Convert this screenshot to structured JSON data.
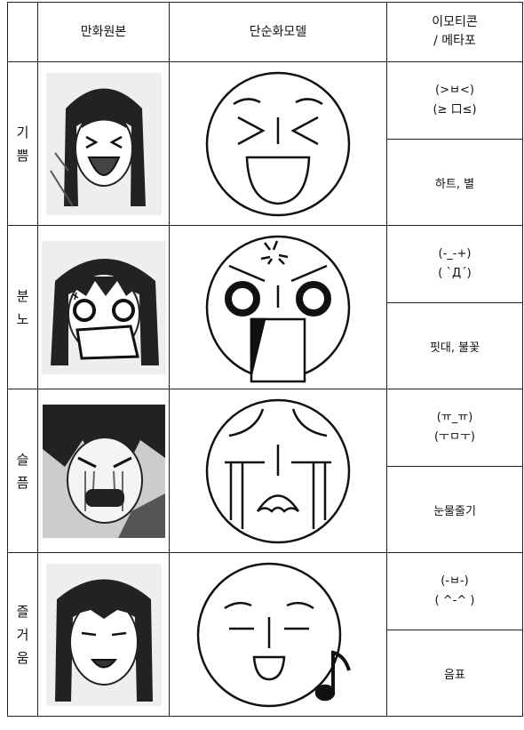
{
  "header": {
    "original": "만화원본",
    "model": "단순화모델",
    "emoticon": "이모티콘",
    "metaphor": "/ 메타포"
  },
  "rows": [
    {
      "emotion": "기쁨",
      "emoticons": [
        "(>ㅂ<)",
        "(≥ 口≤)"
      ],
      "metaphor": "하트, 별"
    },
    {
      "emotion": "분노",
      "emoticons": [
        "(-_-+)",
        "( `Д´)"
      ],
      "metaphor": "핏대, 불꽃"
    },
    {
      "emotion": "슬픔",
      "emoticons": [
        "(ㅠ_ㅠ)",
        "(ㅜㅁㅜ)"
      ],
      "metaphor": "눈물줄기"
    },
    {
      "emotion": "즐거움",
      "emoticons": [
        "(-ㅂ-)",
        "( ^-^ )"
      ],
      "metaphor": "음표"
    }
  ]
}
